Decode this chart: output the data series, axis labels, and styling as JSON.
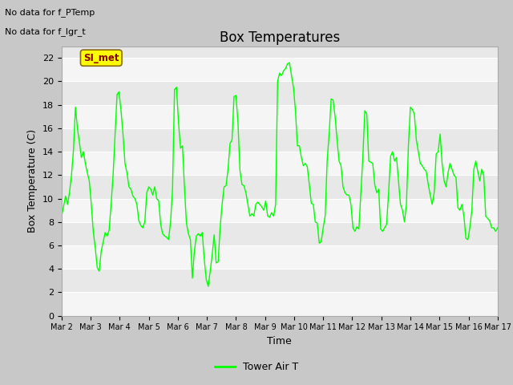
{
  "title": "Box Temperatures",
  "xlabel": "Time",
  "ylabel": "Box Temperature (C)",
  "ylim": [
    0,
    23
  ],
  "yticks": [
    0,
    2,
    4,
    6,
    8,
    10,
    12,
    14,
    16,
    18,
    20,
    22
  ],
  "x_labels": [
    "Mar 2",
    "Mar 3",
    "Mar 4",
    "Mar 5",
    "Mar 6",
    "Mar 7",
    "Mar 8",
    "Mar 9",
    "Mar 10",
    "Mar 11",
    "Mar 12",
    "Mar 13",
    "Mar 14",
    "Mar 15",
    "Mar 16",
    "Mar 17"
  ],
  "annotations": [
    "No data for f_PTemp",
    "No data for f_lgr_t"
  ],
  "legend_label": "Tower Air T",
  "legend_color": "#00ff00",
  "line_color": "#00ff00",
  "band_colors": [
    "#f5f5f5",
    "#e8e8e8"
  ],
  "si_met_box_color": "#ffff00",
  "si_met_text_color": "#8b0000",
  "title_fontsize": 12,
  "label_fontsize": 9,
  "tick_fontsize": 8,
  "annotation_fontsize": 8,
  "y_values": [
    8.5,
    9.3,
    10.2,
    9.5,
    10.5,
    12.0,
    14.1,
    17.8,
    16.0,
    14.8,
    13.5,
    14.0,
    13.0,
    12.2,
    11.5,
    9.5,
    7.2,
    5.8,
    4.1,
    3.8,
    5.5,
    6.3,
    7.1,
    6.8,
    7.3,
    9.5,
    12.0,
    15.5,
    18.9,
    19.1,
    17.5,
    15.5,
    13.0,
    12.2,
    11.0,
    10.8,
    10.2,
    10.0,
    9.5,
    8.1,
    7.7,
    7.5,
    8.0,
    10.5,
    11.0,
    10.8,
    10.3,
    11.0,
    10.0,
    9.8,
    7.8,
    7.0,
    6.8,
    6.7,
    6.5,
    8.0,
    10.9,
    19.3,
    19.5,
    16.5,
    14.3,
    14.5,
    11.0,
    7.9,
    7.0,
    6.5,
    3.2,
    5.5,
    6.8,
    7.0,
    6.8,
    7.1,
    4.8,
    3.1,
    2.5,
    3.8,
    5.2,
    6.9,
    4.5,
    4.6,
    7.5,
    9.5,
    11.0,
    11.1,
    12.5,
    14.7,
    15.0,
    18.7,
    18.8,
    16.5,
    12.4,
    11.2,
    11.1,
    10.5,
    9.5,
    8.5,
    8.7,
    8.5,
    9.5,
    9.7,
    9.5,
    9.3,
    9.0,
    9.8,
    8.5,
    8.4,
    8.8,
    8.5,
    9.5,
    20.0,
    20.7,
    20.5,
    20.9,
    21.1,
    21.5,
    21.6,
    20.5,
    19.5,
    17.5,
    14.5,
    14.5,
    13.5,
    12.8,
    13.0,
    12.7,
    11.2,
    9.6,
    9.5,
    8.0,
    7.9,
    6.2,
    6.3,
    7.5,
    8.5,
    13.2,
    15.5,
    18.5,
    18.4,
    17.0,
    15.0,
    13.2,
    12.8,
    11.0,
    10.5,
    10.3,
    10.3,
    9.5,
    7.5,
    7.2,
    7.6,
    7.4,
    10.5,
    13.5,
    17.5,
    17.2,
    13.2,
    13.1,
    13.0,
    11.2,
    10.5,
    10.8,
    7.4,
    7.2,
    7.5,
    7.8,
    10.5,
    13.6,
    14.0,
    13.2,
    13.5,
    11.5,
    9.5,
    9.0,
    8.0,
    9.5,
    14.5,
    17.8,
    17.6,
    17.2,
    15.0,
    14.0,
    13.0,
    12.8,
    12.5,
    12.3,
    11.2,
    10.3,
    9.5,
    10.5,
    13.8,
    14.0,
    15.5,
    13.0,
    11.5,
    11.0,
    12.2,
    13.0,
    12.5,
    12.0,
    11.8,
    9.2,
    9.0,
    9.5,
    8.5,
    6.6,
    6.5,
    7.5,
    9.0,
    12.5,
    13.2,
    12.3,
    11.5,
    12.5,
    12.0,
    8.5,
    8.3,
    8.1,
    7.5,
    7.5,
    7.2,
    7.5
  ]
}
